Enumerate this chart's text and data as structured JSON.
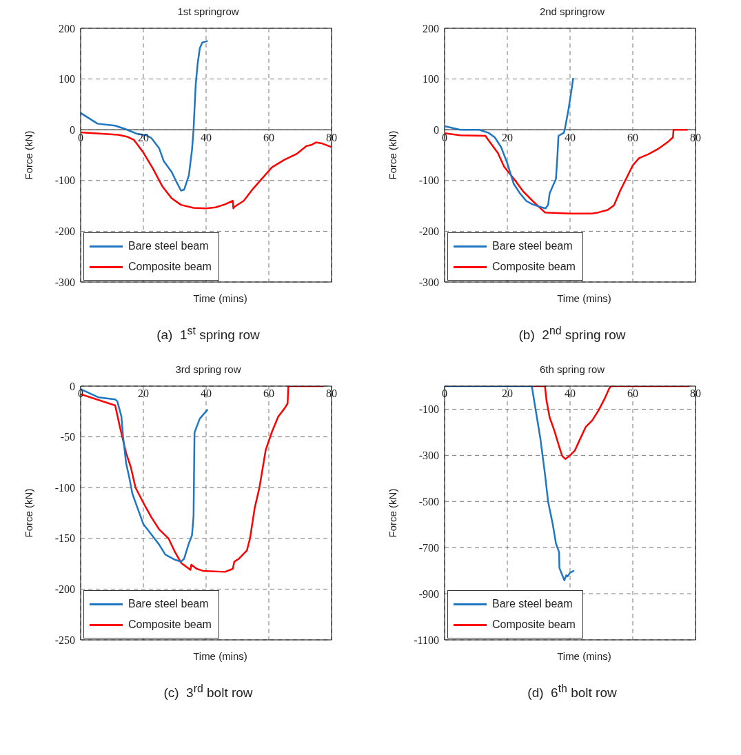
{
  "chart_data": [
    {
      "type": "line",
      "title": "1st springrow",
      "xlabel": "Time (mins)",
      "ylabel": "Force (kN)",
      "annotations": [
        "(a)  1$^{st}$ spring row"
      ],
      "xlim": [
        0,
        80
      ],
      "xticks": [
        0,
        20,
        40,
        60,
        80
      ],
      "ylim": [
        -300,
        200
      ],
      "yticks": [
        -300,
        -200,
        -100,
        0,
        100,
        200
      ],
      "grid": true,
      "legend": "bottom left",
      "series": [
        {
          "name": "Bare steel beam",
          "color": "#1f77c4",
          "x": [
            0,
            5.4,
            11,
            14,
            18,
            21,
            22.5,
            25,
            26.5,
            29,
            30.5,
            32,
            33,
            34.5,
            35.5,
            36,
            36.3,
            36.7,
            37.3,
            38,
            38.8,
            40.5
          ],
          "values": [
            33,
            12,
            8,
            2,
            -8,
            -11,
            -16,
            -36,
            -62,
            -83,
            -102,
            -120,
            -118,
            -90,
            -40,
            0,
            40,
            90,
            130,
            161,
            172,
            175
          ]
        },
        {
          "name": "Composite beam",
          "color": "#ff0000",
          "x": [
            0,
            12,
            15,
            17,
            20,
            23,
            26,
            29,
            32,
            36,
            40,
            43,
            46,
            48.5,
            48.7,
            49,
            52,
            55,
            58,
            61,
            65,
            69,
            72,
            73.5,
            75,
            77,
            80
          ],
          "values": [
            -5,
            -10,
            -14,
            -20,
            -45,
            -76,
            -111,
            -135,
            -148,
            -154,
            -155,
            -153,
            -147,
            -140,
            -155,
            -152,
            -140,
            -116,
            -95,
            -74,
            -59,
            -47,
            -32,
            -30,
            -25,
            -27,
            -34
          ]
        }
      ]
    },
    {
      "type": "line",
      "title": "2nd springrow",
      "xlabel": "Time (mins)",
      "ylabel": "Force (kN)",
      "annotations": [
        "(b)  2$^{nd}$ spring row"
      ],
      "xlim": [
        0,
        80
      ],
      "xticks": [
        0,
        20,
        40,
        60,
        80
      ],
      "ylim": [
        -300,
        200
      ],
      "yticks": [
        -300,
        -200,
        -100,
        0,
        100,
        200
      ],
      "grid": true,
      "legend": "bottom left",
      "series": [
        {
          "name": "Bare steel beam",
          "color": "#1f77c4",
          "x": [
            0,
            5,
            11,
            14,
            16,
            18,
            20,
            22,
            24,
            26,
            28,
            31,
            32.2,
            33,
            33.5,
            35.5,
            36,
            36.3,
            38,
            38.3,
            39.5,
            40.5,
            41
          ],
          "values": [
            7,
            0,
            0,
            -6,
            -15,
            -34,
            -66,
            -106,
            -125,
            -140,
            -147,
            -153,
            -155,
            -148,
            -125,
            -97,
            -49,
            -12,
            -6,
            0,
            40,
            80,
            102
          ]
        },
        {
          "name": "Composite beam",
          "color": "#ff0000",
          "x": [
            0,
            5,
            13,
            14.5,
            17,
            19,
            22,
            25,
            28,
            32,
            40,
            47,
            49,
            52,
            54,
            56,
            58,
            60,
            62,
            65,
            68,
            71,
            72.8,
            73,
            77.5
          ],
          "values": [
            -7,
            -11,
            -12,
            -25,
            -46,
            -73,
            -96,
            -121,
            -140,
            -163,
            -165,
            -165,
            -163,
            -158,
            -149,
            -120,
            -95,
            -70,
            -56,
            -48,
            -38,
            -25,
            -15,
            0,
            0
          ]
        }
      ]
    },
    {
      "type": "line",
      "title": "3rd spring row",
      "xlabel": "Time (mins)",
      "ylabel": "Force (kN)",
      "annotations": [
        "(c)  3$^{rd}$ bolt row"
      ],
      "xlim": [
        0,
        80
      ],
      "xticks": [
        0,
        20,
        40,
        60,
        80
      ],
      "ylim": [
        -250,
        0
      ],
      "yticks": [
        -250,
        -200,
        -150,
        -100,
        -50,
        0
      ],
      "grid": true,
      "legend": "bottom left",
      "series": [
        {
          "name": "Bare steel beam",
          "color": "#1f77c4",
          "x": [
            0,
            5.6,
            11,
            11.7,
            13,
            13.5,
            14.5,
            15.5,
            16.5,
            18,
            20,
            23,
            25,
            27,
            30,
            32,
            33,
            34.5,
            35.5,
            36,
            36.3,
            37,
            38,
            40.5
          ],
          "values": [
            -3,
            -11,
            -13,
            -15,
            -30,
            -49,
            -76,
            -90,
            -106,
            -119,
            -136,
            -148,
            -156,
            -166,
            -171,
            -173,
            -170,
            -155,
            -147,
            -128,
            -46,
            -40,
            -32,
            -23
          ]
        },
        {
          "name": "Composite beam",
          "color": "#ff0000",
          "x": [
            0,
            11,
            12.5,
            14.5,
            16,
            17.5,
            20,
            22.5,
            25,
            28,
            30,
            32,
            35,
            35.3,
            37,
            39,
            46,
            48.5,
            49,
            50.5,
            53,
            54,
            55.5,
            57,
            59,
            61,
            63,
            65,
            66,
            66.2,
            77.5
          ],
          "values": [
            -8,
            -19,
            -40,
            -66,
            -80,
            -100,
            -115,
            -129,
            -141,
            -150,
            -163,
            -174,
            -181,
            -176,
            -180,
            -182,
            -183,
            -180,
            -173,
            -170,
            -162,
            -150,
            -120,
            -100,
            -63,
            -45,
            -30,
            -22,
            -17,
            0,
            0
          ]
        }
      ]
    },
    {
      "type": "line",
      "title": "6th spring row",
      "xlabel": "Time (mins)",
      "ylabel": "Force (kN)",
      "annotations": [
        "(d)  6$^{th}$ bolt row"
      ],
      "xlim": [
        0,
        80
      ],
      "xticks": [
        0,
        20,
        40,
        60,
        80
      ],
      "ylim": [
        -1100,
        0
      ],
      "yticks": [
        -1100,
        -900,
        -700,
        -500,
        -300,
        -100
      ],
      "grid": true,
      "legend": "bottom left",
      "series": [
        {
          "name": "Bare steel beam",
          "color": "#1f77c4",
          "x": [
            0,
            27.8,
            29,
            30.5,
            32,
            33,
            34.5,
            35.5,
            36.5,
            36.6,
            37.5,
            38.2,
            38.8,
            39.2,
            40,
            41.3
          ],
          "values": [
            0,
            0,
            -100,
            -224,
            -381,
            -501,
            -600,
            -682,
            -720,
            -788,
            -819,
            -842,
            -820,
            -825,
            -809,
            -800
          ]
        },
        {
          "name": "Composite beam",
          "color": "#ff0000",
          "x": [
            28,
            32,
            32.5,
            33.5,
            35,
            36.5,
            37.5,
            38.5,
            40,
            41.5,
            43,
            45,
            47,
            49,
            51,
            52.5,
            53,
            78
          ],
          "values": [
            0,
            0,
            -63,
            -136,
            -193,
            -261,
            -303,
            -316,
            -300,
            -280,
            -235,
            -177,
            -150,
            -107,
            -55,
            -10,
            0,
            0
          ]
        }
      ]
    }
  ]
}
